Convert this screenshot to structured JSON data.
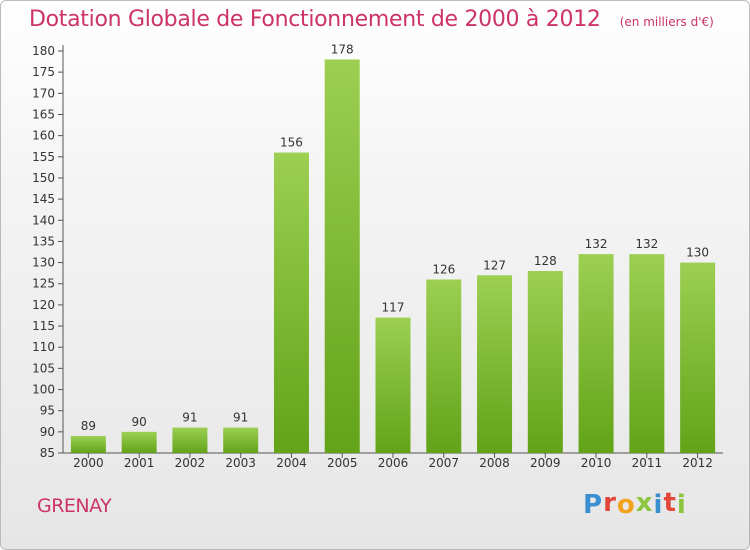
{
  "header": {
    "title": "Dotation Globale de Fonctionnement de 2000 à 2012",
    "subtitle": "(en milliers d'€)"
  },
  "footer": {
    "place": "GRENAY",
    "brand_letters": [
      {
        "char": "P",
        "color": "#3a8fd0"
      },
      {
        "char": "r",
        "color": "#e2473a"
      },
      {
        "char": "o",
        "color": "#f1a31c"
      },
      {
        "char": "x",
        "color": "#8cc63f"
      },
      {
        "char": "i",
        "color": "#3a8fd0"
      },
      {
        "char": "t",
        "color": "#e2473a"
      },
      {
        "char": "i",
        "color": "#8cc63f"
      }
    ]
  },
  "colors": {
    "bar_light": "#9ccf52",
    "bar_dark": "#62a318",
    "axis": "#555555",
    "title": "#cc3366"
  },
  "chart_data": {
    "type": "bar",
    "title": "Dotation Globale de Fonctionnement de 2000 à 2012",
    "subtitle": "(en milliers d'€)",
    "categories": [
      "2000",
      "2001",
      "2002",
      "2003",
      "2004",
      "2005",
      "2006",
      "2007",
      "2008",
      "2009",
      "2010",
      "2011",
      "2012"
    ],
    "values": [
      89,
      90,
      91,
      91,
      156,
      178,
      117,
      126,
      127,
      128,
      132,
      132,
      130
    ],
    "ylim": [
      85,
      180
    ],
    "yticks": [
      85,
      90,
      95,
      100,
      105,
      110,
      115,
      120,
      125,
      130,
      135,
      140,
      145,
      150,
      155,
      160,
      165,
      170,
      175,
      180
    ],
    "grid": false,
    "legend": "none",
    "data_labels": true
  }
}
